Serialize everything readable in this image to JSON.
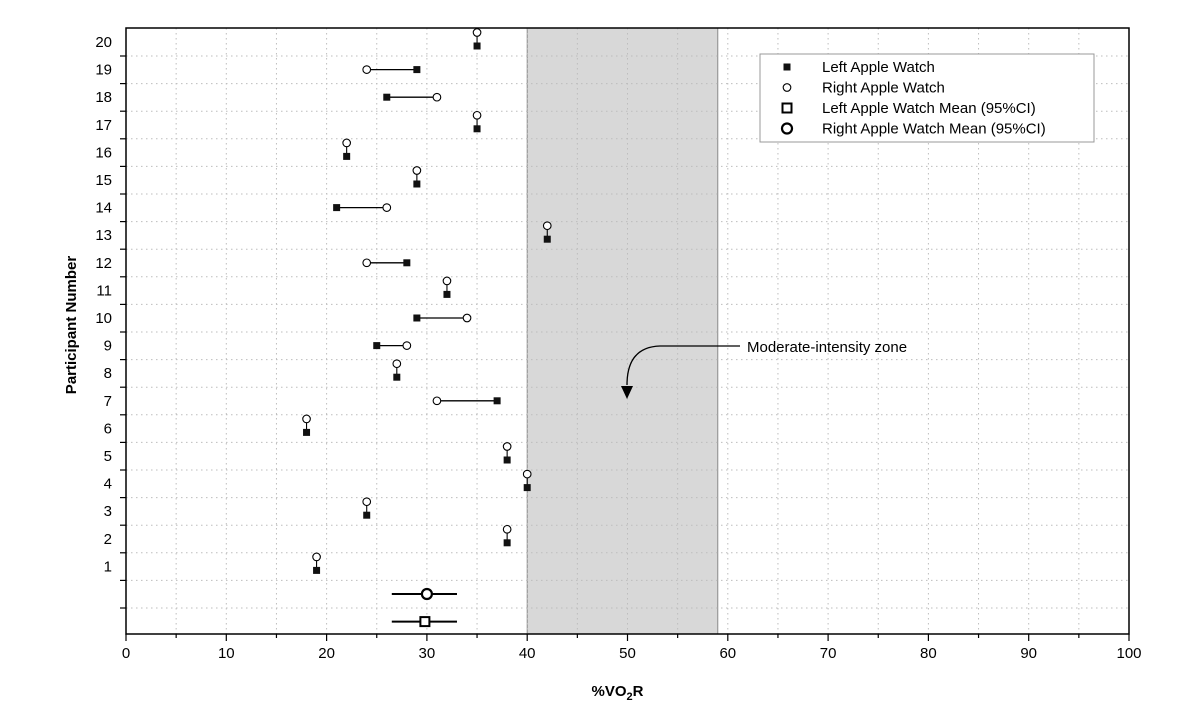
{
  "chart_data": {
    "type": "scatter",
    "orientation": "horizontal",
    "xlabel": "%VO2R",
    "xlabel_parts": {
      "main": "%VO",
      "sub": "2",
      "tail": "R"
    },
    "ylabel": "Participant Number",
    "xlim": [
      0,
      100
    ],
    "x_ticks": [
      0,
      10,
      20,
      30,
      40,
      50,
      60,
      70,
      80,
      90,
      100
    ],
    "y_ticks": [
      "1",
      "2",
      "3",
      "4",
      "5",
      "6",
      "7",
      "8",
      "9",
      "10",
      "11",
      "12",
      "13",
      "14",
      "15",
      "16",
      "17",
      "18",
      "19",
      "20"
    ],
    "grid": true,
    "legend_position": "top-right",
    "shaded_region": {
      "label": "Moderate-intensity zone",
      "x_range": [
        40,
        59
      ]
    },
    "series": [
      {
        "name": "Left Apple Watch",
        "marker": "filled-square",
        "values": [
          19,
          38,
          24,
          40,
          38,
          18,
          37,
          27,
          25,
          29,
          32,
          28,
          42,
          21,
          29,
          22,
          35,
          26,
          29,
          35
        ]
      },
      {
        "name": "Right Apple Watch",
        "marker": "open-circle",
        "values": [
          19,
          38,
          24,
          40,
          38,
          18,
          31,
          27,
          28,
          34,
          32,
          24,
          42,
          26,
          29,
          22,
          35,
          31,
          24,
          35
        ]
      }
    ],
    "means": [
      {
        "name": "Right Apple Watch Mean (95%CI)",
        "marker": "open-circle-bold",
        "mean": 30,
        "ci": [
          26.5,
          33
        ]
      },
      {
        "name": "Left Apple Watch Mean (95%CI)",
        "marker": "open-square-bold",
        "mean": 29.8,
        "ci": [
          26.5,
          33
        ]
      }
    ],
    "legend": [
      {
        "label": "Left Apple Watch",
        "marker": "filled-square"
      },
      {
        "label": "Right Apple Watch",
        "marker": "open-circle"
      },
      {
        "label": "Left Apple Watch Mean (95%CI)",
        "marker": "open-square-bold"
      },
      {
        "label": "Right Apple Watch Mean (95%CI)",
        "marker": "open-circle-bold"
      }
    ]
  }
}
